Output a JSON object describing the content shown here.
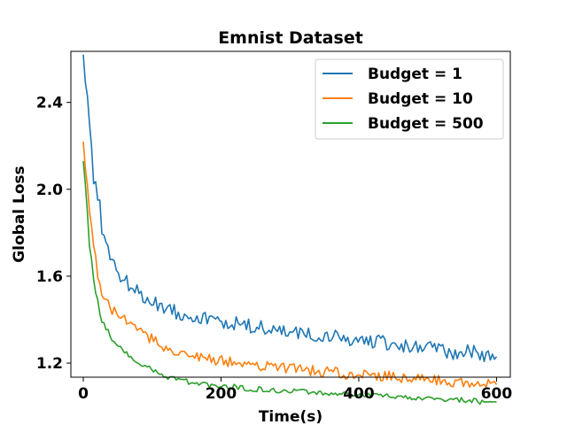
{
  "chart_data": {
    "type": "line",
    "title": "Emnist Dataset",
    "xlabel": "Time(s)",
    "ylabel": "Global Loss",
    "xlim": [
      -18,
      620
    ],
    "ylim": [
      1.135,
      2.635
    ],
    "xticks": [
      0,
      200,
      400,
      600
    ],
    "yticks": [
      1.2,
      1.6,
      2.0,
      2.4
    ],
    "ytick_labels": [
      "1.2",
      "1.6",
      "2.0",
      "2.4"
    ],
    "grid": false,
    "legend_position": "top-right",
    "series": [
      {
        "name": "Budget = 1",
        "color": "#1f77b4",
        "x": [
          0,
          5,
          10,
          15,
          20,
          25,
          30,
          40,
          50,
          60,
          70,
          80,
          90,
          100,
          120,
          140,
          160,
          180,
          200,
          220,
          240,
          260,
          280,
          300,
          320,
          340,
          360,
          380,
          400,
          420,
          440,
          460,
          480,
          500,
          520,
          540,
          560,
          580,
          600
        ],
        "values": [
          2.62,
          2.42,
          2.27,
          2.05,
          1.9,
          1.88,
          1.8,
          1.68,
          1.62,
          1.58,
          1.55,
          1.52,
          1.5,
          1.48,
          1.46,
          1.43,
          1.42,
          1.4,
          1.39,
          1.38,
          1.37,
          1.36,
          1.35,
          1.34,
          1.33,
          1.33,
          1.32,
          1.31,
          1.3,
          1.3,
          1.29,
          1.28,
          1.27,
          1.27,
          1.26,
          1.25,
          1.25,
          1.24,
          1.23
        ]
      },
      {
        "name": "Budget = 10",
        "color": "#ff7f0e",
        "x": [
          0,
          5,
          10,
          15,
          20,
          25,
          30,
          40,
          50,
          60,
          70,
          80,
          90,
          100,
          120,
          140,
          160,
          180,
          200,
          220,
          240,
          260,
          280,
          300,
          320,
          340,
          360,
          380,
          400,
          420,
          440,
          460,
          480,
          500,
          520,
          540,
          560,
          580,
          600
        ],
        "values": [
          2.22,
          2.05,
          1.85,
          1.72,
          1.6,
          1.57,
          1.52,
          1.45,
          1.42,
          1.4,
          1.37,
          1.34,
          1.33,
          1.31,
          1.27,
          1.25,
          1.23,
          1.22,
          1.21,
          1.2,
          1.19,
          1.19,
          1.18,
          1.18,
          1.17,
          1.16,
          1.16,
          1.15,
          1.15,
          1.14,
          1.14,
          1.13,
          1.13,
          1.12,
          1.12,
          1.11,
          1.11,
          1.1,
          1.1
        ]
      },
      {
        "name": "Budget = 500",
        "color": "#2ca02c",
        "x": [
          0,
          5,
          10,
          15,
          20,
          25,
          30,
          40,
          50,
          60,
          70,
          80,
          90,
          100,
          120,
          140,
          160,
          180,
          200,
          220,
          240,
          260,
          280,
          300,
          320,
          340,
          360,
          380,
          400,
          420,
          440,
          460,
          480,
          500,
          520,
          540,
          560,
          580,
          600
        ],
        "values": [
          2.13,
          1.92,
          1.72,
          1.6,
          1.5,
          1.43,
          1.38,
          1.32,
          1.28,
          1.25,
          1.22,
          1.2,
          1.18,
          1.17,
          1.14,
          1.12,
          1.11,
          1.1,
          1.09,
          1.09,
          1.08,
          1.08,
          1.07,
          1.07,
          1.07,
          1.06,
          1.06,
          1.06,
          1.05,
          1.05,
          1.05,
          1.04,
          1.04,
          1.04,
          1.03,
          1.03,
          1.03,
          1.02,
          1.02
        ]
      }
    ]
  }
}
